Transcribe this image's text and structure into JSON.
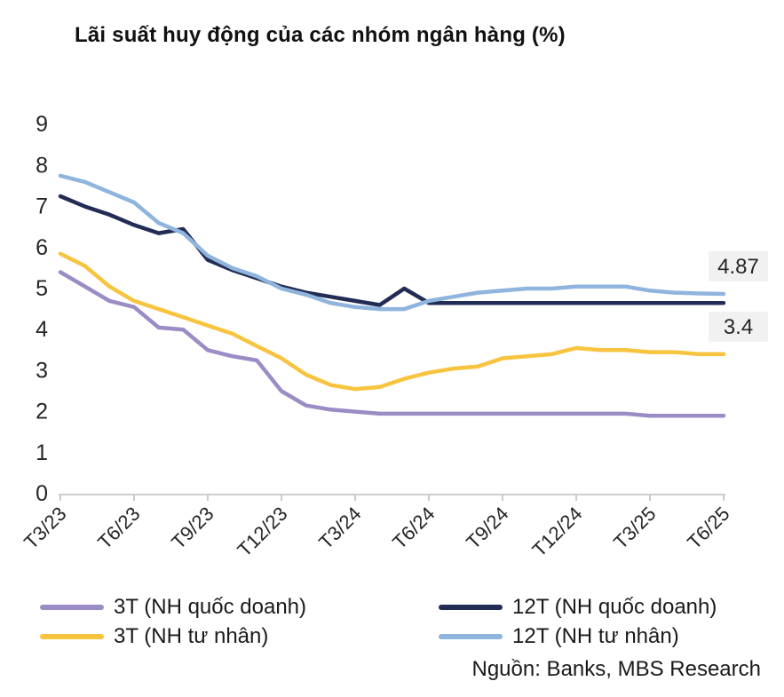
{
  "title": "Lãi suất huy động của các nhóm ngân hàng (%)",
  "source": "Nguồn: Banks, MBS Research",
  "colors": {
    "axis_line": "#bfbfbf",
    "axis_text": "#262626",
    "annotation_bg": "#f1f1f1",
    "series_3t_quoc_doanh": "#9b8cc5",
    "series_3t_tu_nhan": "#f8c440",
    "series_12t_quoc_doanh": "#222c54",
    "series_12t_tu_nhan": "#8fb4dd"
  },
  "chart_data": {
    "type": "line",
    "title": "Lãi suất huy động của các nhóm ngân hàng (%)",
    "xlabel": "",
    "ylabel": "",
    "ylim": [
      0,
      9
    ],
    "y_ticks": [
      0,
      1,
      2,
      3,
      4,
      5,
      6,
      7,
      8,
      9
    ],
    "grid": false,
    "legend_position": "bottom",
    "x": [
      "T3/23",
      "T4/23",
      "T5/23",
      "T6/23",
      "T7/23",
      "T8/23",
      "T9/23",
      "T10/23",
      "T11/23",
      "T12/23",
      "T1/24",
      "T2/24",
      "T3/24",
      "T4/24",
      "T5/24",
      "T6/24",
      "T7/24",
      "T8/24",
      "T9/24",
      "T10/24",
      "T11/24",
      "T12/24",
      "T1/25",
      "T2/25",
      "T3/25",
      "T4/25",
      "T5/25",
      "T6/25"
    ],
    "x_tick_labels": [
      "T3/23",
      "T6/23",
      "T9/23",
      "T12/23",
      "T3/24",
      "T6/24",
      "T9/24",
      "T12/24",
      "T3/25",
      "T6/25"
    ],
    "series": [
      {
        "name": "3T (NH quốc doanh)",
        "color": "#9b8cc5",
        "values": [
          5.4,
          5.05,
          4.7,
          4.55,
          4.05,
          4.0,
          3.5,
          3.35,
          3.25,
          2.5,
          2.15,
          2.05,
          2.0,
          1.95,
          1.95,
          1.95,
          1.95,
          1.95,
          1.95,
          1.95,
          1.95,
          1.95,
          1.95,
          1.95,
          1.9,
          1.9,
          1.9,
          1.9
        ]
      },
      {
        "name": "3T (NH tư nhân)",
        "color": "#f8c440",
        "values": [
          5.85,
          5.55,
          5.05,
          4.7,
          4.5,
          4.3,
          4.1,
          3.9,
          3.6,
          3.3,
          2.9,
          2.65,
          2.55,
          2.6,
          2.8,
          2.95,
          3.05,
          3.1,
          3.3,
          3.35,
          3.4,
          3.55,
          3.5,
          3.5,
          3.45,
          3.45,
          3.4,
          3.4
        ]
      },
      {
        "name": "12T (NH quốc doanh)",
        "color": "#222c54",
        "values": [
          7.25,
          7.0,
          6.8,
          6.55,
          6.35,
          6.45,
          5.7,
          5.45,
          5.25,
          5.05,
          4.9,
          4.8,
          4.7,
          4.6,
          5.0,
          4.65,
          4.65,
          4.65,
          4.65,
          4.65,
          4.65,
          4.65,
          4.65,
          4.65,
          4.65,
          4.65,
          4.65,
          4.65
        ]
      },
      {
        "name": "12T (NH tư nhân)",
        "color": "#8fb4dd",
        "values": [
          7.75,
          7.6,
          7.35,
          7.1,
          6.6,
          6.35,
          5.8,
          5.5,
          5.3,
          5.0,
          4.85,
          4.65,
          4.55,
          4.5,
          4.5,
          4.7,
          4.8,
          4.9,
          4.95,
          5.0,
          5.0,
          5.05,
          5.05,
          5.05,
          4.95,
          4.9,
          4.88,
          4.87
        ]
      }
    ],
    "annotations": [
      {
        "text": "4.87",
        "series": "12T (NH tư nhân)",
        "x": "T6/25",
        "y": 4.87
      },
      {
        "text": "3.4",
        "series": "3T (NH tư nhân)",
        "x": "T6/25",
        "y": 3.4
      }
    ]
  }
}
